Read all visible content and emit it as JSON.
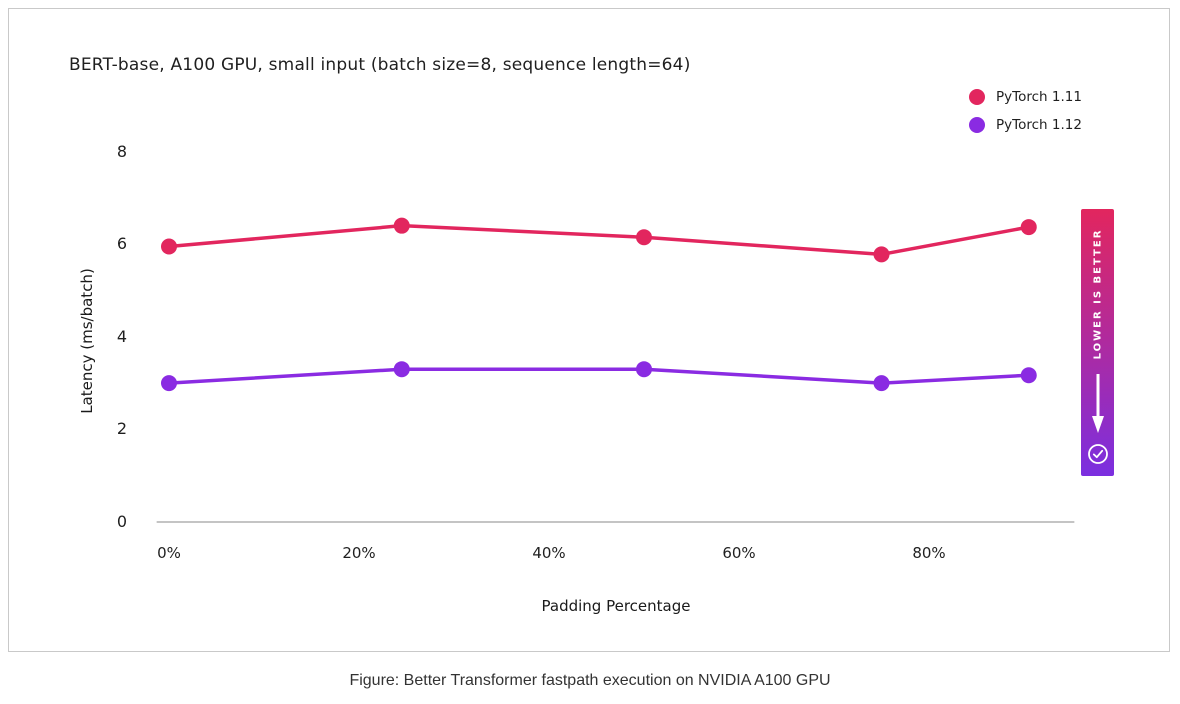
{
  "figure": {
    "caption": "Figure: Better Transformer fastpath execution on NVIDIA A100 GPU"
  },
  "chart_data": {
    "type": "line",
    "title": "BERT-base, A100 GPU, small input (batch size=8, sequence length=64)",
    "xlabel": "Padding Percentage",
    "ylabel": "Latency (ms/batch)",
    "x_percent": [
      0,
      24.5,
      50,
      75,
      90.5
    ],
    "series": [
      {
        "name": "PyTorch 1.11",
        "color": "#E2265E",
        "values": [
          5.95,
          6.4,
          6.15,
          5.78,
          6.37
        ]
      },
      {
        "name": "PyTorch 1.12",
        "color": "#8A2BE2",
        "values": [
          3.0,
          3.3,
          3.3,
          3.0,
          3.17
        ]
      }
    ],
    "x_tick_values": [
      0,
      20,
      40,
      60,
      80
    ],
    "x_tick_labels": [
      "0%",
      "20%",
      "40%",
      "60%",
      "80%"
    ],
    "y_tick_values": [
      0,
      2,
      4,
      6,
      8
    ],
    "y_tick_labels": [
      "0",
      "2",
      "4",
      "6",
      "8"
    ],
    "ylim": [
      0,
      8
    ],
    "xlim": [
      -1.3,
      95.3
    ],
    "grid": false,
    "legend_position": "top-right",
    "axis_line_color": "#C4C4C4",
    "annotation": {
      "label": "LOWER IS BETTER",
      "icon": "check-circle-icon",
      "gradient_top": "#E2265E",
      "gradient_bottom": "#7B2FE0"
    }
  }
}
